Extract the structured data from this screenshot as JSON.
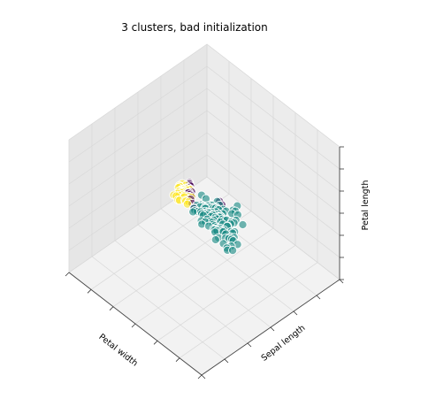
{
  "chart_data": {
    "type": "scatter",
    "projection": "3d",
    "title": "3 clusters, bad initialization",
    "axes": {
      "x_label": "Petal width",
      "y_label": "Sepal length",
      "z_label": "Petal length"
    },
    "grid": true,
    "colormap": "viridis",
    "series": [
      {
        "color": "#1a8a84",
        "points": [
          [
            1.8,
            5.9,
            5.1
          ],
          [
            2.1,
            6.8,
            5.9
          ],
          [
            2.3,
            6.9,
            5.7
          ],
          [
            2.0,
            6.5,
            5.2
          ],
          [
            2.2,
            7.7,
            6.7
          ],
          [
            1.9,
            6.3,
            5.0
          ],
          [
            2.4,
            6.7,
            5.7
          ],
          [
            2.1,
            7.2,
            6.0
          ],
          [
            1.8,
            6.1,
            4.9
          ],
          [
            2.3,
            6.4,
            5.3
          ],
          [
            2.5,
            6.7,
            5.8
          ],
          [
            2.0,
            7.4,
            6.1
          ],
          [
            1.8,
            6.3,
            5.6
          ],
          [
            2.1,
            7.1,
            5.9
          ],
          [
            1.9,
            5.8,
            5.1
          ],
          [
            2.2,
            6.4,
            5.6
          ],
          [
            1.8,
            6.5,
            5.5
          ],
          [
            2.3,
            6.8,
            5.9
          ],
          [
            2.0,
            6.9,
            5.4
          ],
          [
            2.4,
            6.3,
            5.6
          ],
          [
            1.5,
            6.0,
            4.5
          ],
          [
            1.4,
            6.6,
            4.4
          ],
          [
            1.3,
            5.7,
            4.2
          ],
          [
            1.6,
            6.3,
            4.7
          ],
          [
            1.5,
            5.9,
            4.2
          ],
          [
            1.3,
            5.6,
            4.1
          ],
          [
            1.4,
            6.1,
            4.7
          ],
          [
            1.2,
            5.8,
            4.0
          ],
          [
            1.5,
            6.2,
            4.5
          ],
          [
            1.3,
            5.5,
            4.0
          ],
          [
            1.4,
            6.7,
            4.4
          ],
          [
            1.5,
            5.6,
            4.5
          ],
          [
            1.0,
            5.0,
            3.5
          ],
          [
            1.1,
            5.5,
            3.8
          ],
          [
            1.3,
            6.0,
            4.0
          ],
          [
            1.2,
            5.7,
            4.2
          ],
          [
            1.4,
            6.4,
            4.5
          ],
          [
            1.0,
            4.9,
            3.3
          ],
          [
            1.5,
            6.5,
            4.6
          ],
          [
            1.3,
            5.7,
            4.5
          ],
          [
            1.6,
            6.0,
            4.5
          ],
          [
            1.1,
            5.6,
            3.9
          ],
          [
            1.2,
            6.1,
            4.0
          ],
          [
            1.4,
            6.8,
            4.8
          ],
          [
            1.5,
            6.9,
            4.9
          ],
          [
            1.3,
            6.3,
            4.4
          ],
          [
            1.0,
            5.8,
            4.1
          ],
          [
            1.2,
            5.5,
            3.7
          ],
          [
            1.4,
            6.2,
            4.3
          ],
          [
            1.5,
            6.7,
            4.7
          ],
          [
            1.8,
            6.0,
            4.8
          ],
          [
            1.7,
            6.7,
            5.0
          ],
          [
            1.6,
            6.3,
            4.9
          ],
          [
            1.8,
            6.5,
            5.1
          ],
          [
            1.9,
            6.2,
            5.2
          ],
          [
            1.8,
            6.4,
            5.5
          ],
          [
            2.0,
            6.0,
            5.0
          ],
          [
            1.7,
            5.9,
            4.8
          ],
          [
            1.6,
            6.1,
            4.6
          ],
          [
            1.8,
            5.9,
            4.8
          ],
          [
            2.1,
            6.6,
            5.4
          ],
          [
            2.2,
            6.2,
            5.3
          ],
          [
            1.9,
            6.6,
            5.3
          ],
          [
            2.3,
            7.0,
            6.1
          ],
          [
            2.0,
            5.7,
            5.0
          ],
          [
            1.3,
            6.5,
            4.1
          ],
          [
            1.1,
            5.2,
            3.6
          ],
          [
            1.2,
            5.4,
            3.9
          ],
          [
            1.0,
            5.3,
            3.6
          ],
          [
            1.4,
            5.8,
            4.3
          ],
          [
            1.3,
            6.4,
            4.3
          ],
          [
            1.5,
            6.8,
            4.6
          ],
          [
            1.6,
            6.6,
            4.8
          ],
          [
            1.7,
            6.9,
            5.1
          ],
          [
            2.1,
            7.6,
            6.6
          ],
          [
            2.2,
            7.3,
            6.3
          ],
          [
            1.8,
            6.7,
            5.2
          ],
          [
            1.9,
            6.8,
            5.5
          ],
          [
            2.3,
            7.2,
            6.1
          ],
          [
            2.0,
            6.4,
            5.3
          ],
          [
            2.4,
            6.9,
            6.0
          ],
          [
            2.5,
            7.2,
            6.0
          ],
          [
            1.5,
            5.4,
            4.4
          ],
          [
            1.4,
            5.2,
            3.9
          ],
          [
            1.6,
            5.6,
            4.4
          ],
          [
            1.2,
            5.9,
            3.9
          ],
          [
            1.1,
            6.1,
            4.1
          ],
          [
            1.7,
            6.3,
            5.0
          ],
          [
            1.9,
            6.0,
            5.1
          ],
          [
            2.0,
            6.2,
            5.6
          ],
          [
            2.1,
            6.4,
            5.8
          ],
          [
            2.2,
            7.0,
            5.8
          ],
          [
            1.8,
            7.1,
            5.6
          ],
          [
            2.3,
            6.6,
            5.9
          ],
          [
            1.5,
            6.1,
            4.6
          ],
          [
            1.4,
            5.9,
            4.4
          ],
          [
            1.8,
            5.8,
            4.9
          ],
          [
            2.4,
            7.0,
            6.2
          ],
          [
            2.0,
            7.5,
            6.3
          ],
          [
            1.3,
            5.3,
            3.7
          ],
          [
            1.2,
            5.6,
            4.2
          ],
          [
            1.0,
            5.1,
            3.3
          ],
          [
            1.6,
            7.1,
            4.9
          ],
          [
            2.1,
            7.8,
            6.9
          ],
          [
            1.9,
            7.0,
            5.4
          ],
          [
            2.2,
            7.5,
            6.4
          ],
          [
            2.4,
            7.9,
            6.7
          ]
        ]
      },
      {
        "color": "#fde725",
        "points": [
          [
            0.2,
            5.1,
            1.4
          ],
          [
            0.2,
            4.9,
            1.4
          ],
          [
            0.2,
            4.7,
            1.3
          ],
          [
            0.2,
            4.6,
            1.5
          ],
          [
            0.2,
            5.0,
            1.4
          ],
          [
            0.4,
            5.4,
            1.7
          ],
          [
            0.3,
            4.6,
            1.4
          ],
          [
            0.2,
            5.0,
            1.5
          ],
          [
            0.2,
            4.4,
            1.4
          ],
          [
            0.1,
            4.9,
            1.5
          ],
          [
            0.2,
            5.4,
            1.5
          ],
          [
            0.2,
            4.8,
            1.6
          ],
          [
            0.1,
            4.8,
            1.4
          ],
          [
            0.1,
            4.3,
            1.1
          ],
          [
            0.2,
            5.8,
            1.2
          ],
          [
            0.4,
            5.7,
            1.5
          ],
          [
            0.4,
            5.4,
            1.3
          ],
          [
            0.3,
            5.1,
            1.4
          ],
          [
            0.3,
            5.7,
            1.7
          ],
          [
            0.3,
            5.1,
            1.5
          ],
          [
            0.2,
            5.4,
            1.7
          ],
          [
            0.4,
            5.1,
            1.5
          ],
          [
            0.2,
            4.6,
            1.0
          ],
          [
            0.5,
            5.1,
            1.7
          ],
          [
            0.2,
            4.8,
            1.9
          ],
          [
            0.2,
            5.0,
            1.6
          ],
          [
            0.4,
            5.0,
            1.6
          ],
          [
            0.2,
            5.2,
            1.5
          ],
          [
            0.2,
            5.2,
            1.4
          ],
          [
            0.2,
            4.7,
            1.6
          ],
          [
            0.2,
            4.8,
            1.6
          ],
          [
            0.4,
            5.4,
            1.5
          ],
          [
            0.1,
            5.2,
            1.5
          ],
          [
            0.2,
            5.5,
            1.4
          ],
          [
            0.1,
            4.9,
            1.5
          ],
          [
            0.2,
            5.0,
            1.2
          ],
          [
            0.2,
            5.5,
            1.3
          ]
        ]
      },
      {
        "color": "#440154",
        "points": [
          [
            0.3,
            5.6,
            1.5
          ],
          [
            0.4,
            5.7,
            1.6
          ],
          [
            0.3,
            5.5,
            1.9
          ],
          [
            0.6,
            5.6,
            1.6
          ],
          [
            0.2,
            5.8,
            1.6
          ],
          [
            0.4,
            5.6,
            1.4
          ],
          [
            0.3,
            5.7,
            1.3
          ],
          [
            0.2,
            5.9,
            1.4
          ],
          [
            0.5,
            5.6,
            1.5
          ],
          [
            0.2,
            5.8,
            1.7
          ],
          [
            0.3,
            5.5,
            1.5
          ],
          [
            0.4,
            5.7,
            1.9
          ],
          [
            1.3,
            7.2,
            4.2
          ],
          [
            1.4,
            7.3,
            4.3
          ]
        ]
      }
    ],
    "ranges": {
      "x": [
        0,
        2.5
      ],
      "y": [
        4.3,
        7.9
      ],
      "z": [
        1,
        6.9
      ]
    }
  }
}
